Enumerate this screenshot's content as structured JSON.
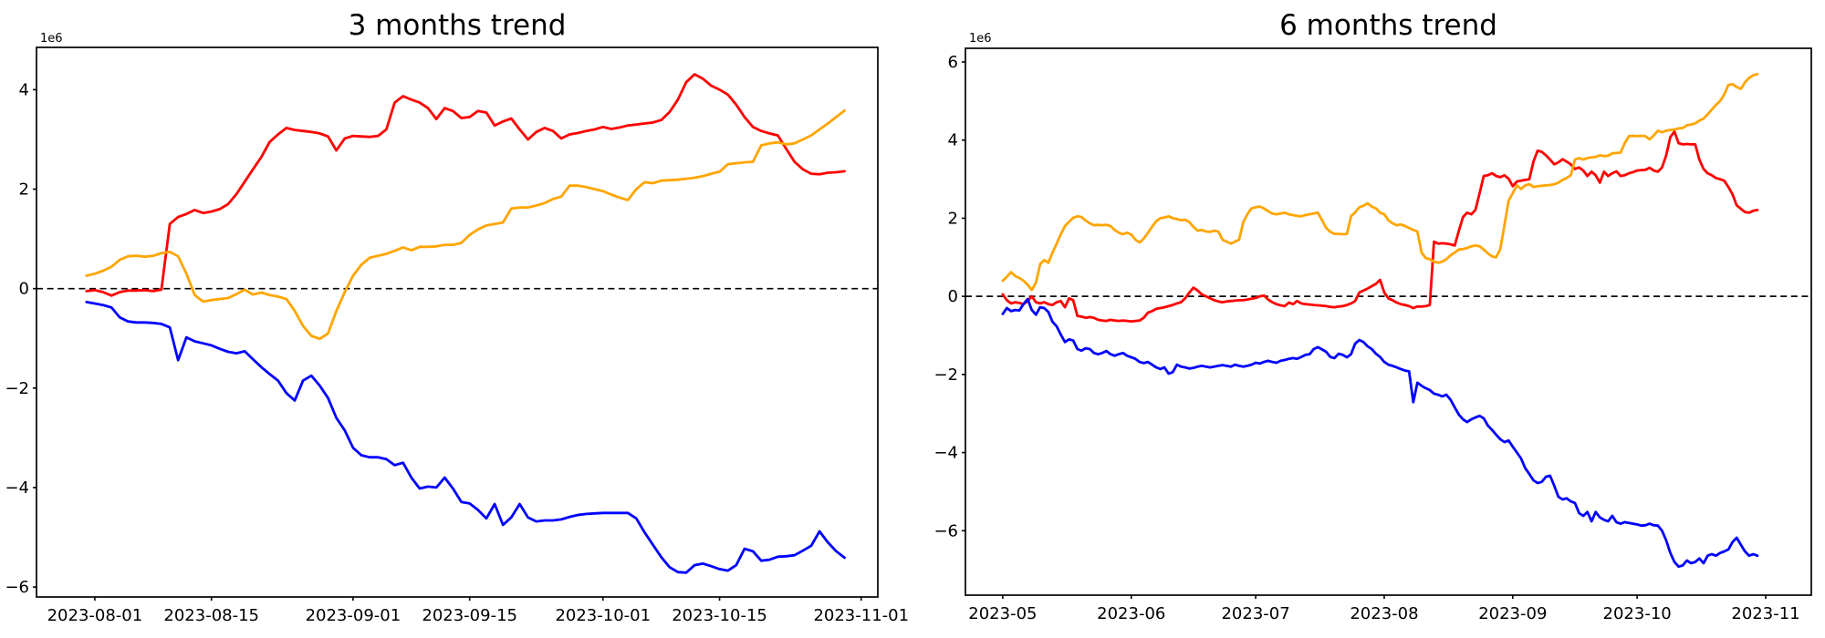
{
  "background": "#ffffff",
  "chart_data": [
    {
      "id": "trend-3m",
      "type": "line",
      "title": "3 months trend",
      "offset_label": "1e6",
      "unit_multiplier": 1000000,
      "grid": false,
      "legend_position": null,
      "zero_dashed_line": 0,
      "start_date": "2023-07-31",
      "interval_days": 1,
      "xlim": [
        "2023-07-25",
        "2023-11-03"
      ],
      "ylim": [
        -6.2,
        4.85
      ],
      "x_tick_dates": [
        "2023-08-01",
        "2023-08-15",
        "2023-09-01",
        "2023-09-15",
        "2023-10-01",
        "2023-10-15",
        "2023-11-01"
      ],
      "x_tick_labels": [
        "2023-08-01",
        "2023-08-15",
        "2023-09-01",
        "2023-09-15",
        "2023-10-01",
        "2023-10-15",
        "2023-11-01"
      ],
      "y_tick_values": [
        4,
        2,
        0,
        -2,
        -4,
        -6
      ],
      "y_tick_labels": [
        "4",
        "2",
        "0",
        "−2",
        "−4",
        "−6"
      ],
      "series": [
        {
          "name": "red-series",
          "color": "#ff0000",
          "values": [
            -0.05,
            -0.03,
            -0.07,
            -0.14,
            -0.07,
            -0.04,
            -0.04,
            -0.03,
            -0.05,
            -0.02,
            1.3,
            1.44,
            1.5,
            1.58,
            1.52,
            1.55,
            1.6,
            1.7,
            1.9,
            2.15,
            2.4,
            2.65,
            2.95,
            3.1,
            3.23,
            3.19,
            3.17,
            3.15,
            3.12,
            3.06,
            2.78,
            3.02,
            3.07,
            3.06,
            3.05,
            3.07,
            3.2,
            3.74,
            3.87,
            3.8,
            3.74,
            3.63,
            3.41,
            3.63,
            3.57,
            3.43,
            3.45,
            3.57,
            3.54,
            3.28,
            3.36,
            3.42,
            3.2,
            3.0,
            3.15,
            3.23,
            3.17,
            3.02,
            3.1,
            3.13,
            3.17,
            3.2,
            3.25,
            3.21,
            3.24,
            3.28,
            3.3,
            3.32,
            3.34,
            3.39,
            3.55,
            3.8,
            4.15,
            4.31,
            4.22,
            4.08,
            4.0,
            3.9,
            3.7,
            3.45,
            3.25,
            3.17,
            3.12,
            3.08,
            2.81,
            2.55,
            2.4,
            2.31,
            2.3,
            2.33,
            2.34,
            2.36
          ]
        },
        {
          "name": "orange-series",
          "color": "#ffa500",
          "values": [
            0.26,
            0.3,
            0.36,
            0.44,
            0.58,
            0.65,
            0.66,
            0.64,
            0.66,
            0.71,
            0.74,
            0.65,
            0.3,
            -0.13,
            -0.26,
            -0.23,
            -0.21,
            -0.19,
            -0.11,
            -0.02,
            -0.12,
            -0.08,
            -0.13,
            -0.16,
            -0.21,
            -0.45,
            -0.75,
            -0.95,
            -1.01,
            -0.9,
            -0.45,
            -0.07,
            0.26,
            0.48,
            0.62,
            0.66,
            0.7,
            0.76,
            0.83,
            0.77,
            0.84,
            0.84,
            0.85,
            0.88,
            0.88,
            0.92,
            1.08,
            1.19,
            1.27,
            1.3,
            1.33,
            1.61,
            1.63,
            1.63,
            1.67,
            1.72,
            1.8,
            1.85,
            2.07,
            2.07,
            2.04,
            2.0,
            1.96,
            1.89,
            1.83,
            1.78,
            2.0,
            2.14,
            2.12,
            2.17,
            2.18,
            2.19,
            2.21,
            2.23,
            2.26,
            2.31,
            2.35,
            2.5,
            2.52,
            2.54,
            2.55,
            2.88,
            2.92,
            2.94,
            2.9,
            2.92,
            3.0,
            3.08,
            3.2,
            3.32,
            3.45,
            3.58
          ]
        },
        {
          "name": "blue-series",
          "color": "#0000ff",
          "values": [
            -0.27,
            -0.3,
            -0.33,
            -0.38,
            -0.58,
            -0.66,
            -0.68,
            -0.68,
            -0.69,
            -0.71,
            -0.78,
            -1.44,
            -0.98,
            -1.06,
            -1.1,
            -1.14,
            -1.21,
            -1.27,
            -1.3,
            -1.26,
            -1.42,
            -1.58,
            -1.72,
            -1.85,
            -2.1,
            -2.25,
            -1.85,
            -1.75,
            -1.95,
            -2.2,
            -2.6,
            -2.85,
            -3.2,
            -3.35,
            -3.39,
            -3.39,
            -3.43,
            -3.55,
            -3.5,
            -3.8,
            -4.02,
            -3.98,
            -4.0,
            -3.8,
            -4.02,
            -4.29,
            -4.32,
            -4.45,
            -4.62,
            -4.33,
            -4.75,
            -4.6,
            -4.33,
            -4.6,
            -4.68,
            -4.66,
            -4.66,
            -4.64,
            -4.59,
            -4.55,
            -4.53,
            -4.52,
            -4.51,
            -4.51,
            -4.51,
            -4.51,
            -4.62,
            -4.9,
            -5.15,
            -5.4,
            -5.6,
            -5.7,
            -5.71,
            -5.56,
            -5.53,
            -5.58,
            -5.64,
            -5.67,
            -5.56,
            -5.23,
            -5.28,
            -5.47,
            -5.45,
            -5.39,
            -5.38,
            -5.36,
            -5.27,
            -5.17,
            -4.88,
            -5.1,
            -5.28,
            -5.41
          ]
        }
      ]
    },
    {
      "id": "trend-6m",
      "type": "line",
      "title": "6 months trend",
      "offset_label": "1e6",
      "unit_multiplier": 1000000,
      "grid": false,
      "legend_position": null,
      "zero_dashed_line": 0,
      "start_date": "2023-05-01",
      "interval_days": 1,
      "xlim": [
        "2023-04-22",
        "2023-11-12"
      ],
      "ylim": [
        -7.65,
        6.35
      ],
      "x_tick_dates": [
        "2023-05-01",
        "2023-06-01",
        "2023-07-01",
        "2023-08-01",
        "2023-09-01",
        "2023-10-01",
        "2023-11-01"
      ],
      "x_tick_labels": [
        "2023-05",
        "2023-06",
        "2023-07",
        "2023-08",
        "2023-09",
        "2023-10",
        "2023-11"
      ],
      "y_tick_values": [
        6,
        4,
        2,
        0,
        -2,
        -4,
        -6
      ],
      "y_tick_labels": [
        "6",
        "4",
        "2",
        "0",
        "−2",
        "−4",
        "−6"
      ],
      "series": [
        {
          "name": "red-series",
          "color": "#ff0000",
          "values": [
            0.05,
            -0.1,
            -0.18,
            -0.15,
            -0.17,
            -0.2,
            -0.12,
            0.0,
            -0.15,
            -0.18,
            -0.15,
            -0.2,
            -0.22,
            -0.15,
            -0.12,
            -0.28,
            -0.05,
            -0.1,
            -0.5,
            -0.52,
            -0.55,
            -0.53,
            -0.55,
            -0.6,
            -0.62,
            -0.63,
            -0.6,
            -0.62,
            -0.63,
            -0.62,
            -0.63,
            -0.64,
            -0.63,
            -0.62,
            -0.55,
            -0.42,
            -0.38,
            -0.32,
            -0.3,
            -0.28,
            -0.25,
            -0.22,
            -0.18,
            -0.15,
            -0.05,
            0.1,
            0.22,
            0.15,
            0.05,
            0.0,
            -0.05,
            -0.1,
            -0.13,
            -0.15,
            -0.13,
            -0.12,
            -0.11,
            -0.1,
            -0.1,
            -0.08,
            -0.06,
            -0.04,
            0.0,
            0.02,
            -0.08,
            -0.15,
            -0.2,
            -0.23,
            -0.25,
            -0.16,
            -0.2,
            -0.12,
            -0.18,
            -0.2,
            -0.21,
            -0.22,
            -0.23,
            -0.24,
            -0.25,
            -0.27,
            -0.28,
            -0.26,
            -0.25,
            -0.22,
            -0.18,
            -0.12,
            0.1,
            0.15,
            0.2,
            0.26,
            0.32,
            0.42,
            0.1,
            -0.05,
            -0.1,
            -0.16,
            -0.2,
            -0.22,
            -0.25,
            -0.3,
            -0.26,
            -0.26,
            -0.25,
            -0.22,
            1.4,
            1.35,
            1.36,
            1.35,
            1.33,
            1.3,
            1.68,
            2.03,
            2.14,
            2.1,
            2.21,
            2.64,
            3.08,
            3.1,
            3.15,
            3.08,
            3.05,
            3.1,
            3.01,
            2.82,
            2.94,
            2.96,
            2.98,
            3.0,
            3.45,
            3.73,
            3.7,
            3.61,
            3.5,
            3.38,
            3.43,
            3.51,
            3.45,
            3.38,
            3.26,
            3.3,
            3.22,
            3.08,
            3.19,
            3.1,
            2.91,
            3.19,
            3.08,
            3.15,
            3.2,
            3.08,
            3.1,
            3.15,
            3.18,
            3.22,
            3.23,
            3.24,
            3.29,
            3.22,
            3.19,
            3.3,
            3.61,
            4.08,
            4.22,
            3.92,
            3.89,
            3.9,
            3.89,
            3.89,
            3.5,
            3.26,
            3.15,
            3.1,
            3.03,
            3.0,
            2.96,
            2.8,
            2.61,
            2.33,
            2.24,
            2.16,
            2.14,
            2.19,
            2.21
          ]
        },
        {
          "name": "orange-series",
          "color": "#ffa500",
          "values": [
            0.4,
            0.5,
            0.62,
            0.52,
            0.47,
            0.4,
            0.3,
            0.16,
            0.35,
            0.82,
            0.93,
            0.86,
            1.12,
            1.35,
            1.59,
            1.8,
            1.91,
            2.01,
            2.05,
            2.03,
            1.94,
            1.87,
            1.82,
            1.83,
            1.82,
            1.83,
            1.8,
            1.7,
            1.63,
            1.59,
            1.63,
            1.58,
            1.45,
            1.38,
            1.48,
            1.62,
            1.78,
            1.92,
            2.0,
            2.02,
            2.05,
            2.0,
            1.98,
            1.95,
            1.96,
            1.9,
            1.78,
            1.68,
            1.7,
            1.66,
            1.65,
            1.68,
            1.66,
            1.45,
            1.4,
            1.35,
            1.4,
            1.45,
            1.9,
            2.1,
            2.25,
            2.28,
            2.3,
            2.25,
            2.18,
            2.12,
            2.1,
            2.12,
            2.14,
            2.1,
            2.08,
            2.06,
            2.05,
            2.08,
            2.1,
            2.12,
            2.14,
            1.95,
            1.75,
            1.65,
            1.6,
            1.6,
            1.59,
            1.6,
            2.05,
            2.15,
            2.28,
            2.32,
            2.38,
            2.3,
            2.25,
            2.14,
            2.1,
            1.95,
            1.87,
            1.82,
            1.84,
            1.8,
            1.75,
            1.7,
            1.66,
            1.12,
            0.98,
            0.95,
            0.89,
            0.86,
            0.89,
            0.95,
            1.05,
            1.12,
            1.2,
            1.21,
            1.24,
            1.28,
            1.3,
            1.28,
            1.2,
            1.1,
            1.02,
            1.0,
            1.21,
            1.82,
            2.45,
            2.64,
            2.84,
            2.75,
            2.84,
            2.87,
            2.8,
            2.82,
            2.83,
            2.84,
            2.85,
            2.87,
            2.91,
            2.98,
            3.03,
            3.1,
            3.5,
            3.54,
            3.5,
            3.54,
            3.56,
            3.57,
            3.61,
            3.59,
            3.6,
            3.66,
            3.67,
            3.68,
            3.92,
            4.1,
            4.11,
            4.1,
            4.11,
            4.1,
            4.02,
            4.12,
            4.24,
            4.2,
            4.24,
            4.26,
            4.27,
            4.3,
            4.31,
            4.38,
            4.4,
            4.43,
            4.5,
            4.55,
            4.66,
            4.78,
            4.9,
            5.0,
            5.17,
            5.41,
            5.43,
            5.36,
            5.31,
            5.48,
            5.59,
            5.66,
            5.69
          ]
        },
        {
          "name": "blue-series",
          "color": "#0000ff",
          "values": [
            -0.45,
            -0.3,
            -0.38,
            -0.35,
            -0.36,
            -0.2,
            -0.07,
            -0.35,
            -0.47,
            -0.28,
            -0.3,
            -0.4,
            -0.65,
            -0.77,
            -0.98,
            -1.17,
            -1.1,
            -1.13,
            -1.35,
            -1.39,
            -1.33,
            -1.35,
            -1.45,
            -1.48,
            -1.45,
            -1.4,
            -1.48,
            -1.52,
            -1.48,
            -1.45,
            -1.52,
            -1.56,
            -1.6,
            -1.68,
            -1.71,
            -1.68,
            -1.75,
            -1.82,
            -1.86,
            -1.82,
            -1.98,
            -1.94,
            -1.75,
            -1.8,
            -1.82,
            -1.85,
            -1.83,
            -1.8,
            -1.78,
            -1.8,
            -1.82,
            -1.8,
            -1.78,
            -1.76,
            -1.78,
            -1.8,
            -1.75,
            -1.78,
            -1.8,
            -1.78,
            -1.75,
            -1.7,
            -1.72,
            -1.68,
            -1.65,
            -1.68,
            -1.7,
            -1.65,
            -1.63,
            -1.6,
            -1.58,
            -1.6,
            -1.55,
            -1.5,
            -1.48,
            -1.35,
            -1.3,
            -1.36,
            -1.42,
            -1.55,
            -1.58,
            -1.47,
            -1.5,
            -1.56,
            -1.48,
            -1.21,
            -1.12,
            -1.17,
            -1.28,
            -1.35,
            -1.47,
            -1.55,
            -1.68,
            -1.75,
            -1.78,
            -1.82,
            -1.86,
            -1.9,
            -1.92,
            -2.71,
            -2.21,
            -2.29,
            -2.35,
            -2.4,
            -2.49,
            -2.52,
            -2.56,
            -2.52,
            -2.65,
            -2.84,
            -3.03,
            -3.15,
            -3.22,
            -3.15,
            -3.1,
            -3.06,
            -3.12,
            -3.31,
            -3.42,
            -3.54,
            -3.66,
            -3.73,
            -3.69,
            -3.85,
            -4.0,
            -4.15,
            -4.4,
            -4.55,
            -4.71,
            -4.78,
            -4.75,
            -4.62,
            -4.59,
            -4.85,
            -5.13,
            -5.2,
            -5.17,
            -5.25,
            -5.29,
            -5.55,
            -5.62,
            -5.52,
            -5.76,
            -5.52,
            -5.66,
            -5.72,
            -5.76,
            -5.62,
            -5.78,
            -5.82,
            -5.78,
            -5.8,
            -5.82,
            -5.84,
            -5.87,
            -5.86,
            -5.82,
            -5.86,
            -5.87,
            -6.0,
            -6.25,
            -6.57,
            -6.8,
            -6.92,
            -6.89,
            -6.76,
            -6.83,
            -6.8,
            -6.71,
            -6.83,
            -6.64,
            -6.6,
            -6.64,
            -6.57,
            -6.53,
            -6.48,
            -6.29,
            -6.18,
            -6.36,
            -6.53,
            -6.64,
            -6.6,
            -6.64
          ]
        }
      ]
    }
  ]
}
